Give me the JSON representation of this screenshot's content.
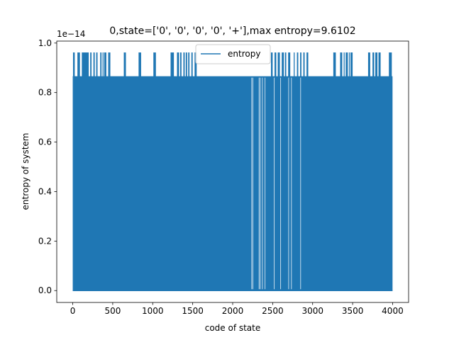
{
  "chart_data": {
    "type": "line",
    "title": "0,state=['0', '0', '0', '0', '+'],max entropy=9.6102",
    "xlabel": "code of state",
    "ylabel": "entropy of system",
    "offset_text": "1e−14",
    "xlim": [
      -200,
      4200
    ],
    "ylim": [
      -0.048,
      1.008
    ],
    "xticks": [
      0,
      500,
      1000,
      1500,
      2000,
      2500,
      3000,
      3500,
      4000
    ],
    "xtick_labels": [
      "0",
      "500",
      "1000",
      "1500",
      "2000",
      "2500",
      "3000",
      "3500",
      "4000"
    ],
    "yticks": [
      0.0,
      0.2,
      0.4,
      0.6,
      0.8,
      1.0
    ],
    "ytick_labels": [
      "0.0",
      "0.2",
      "0.4",
      "0.6",
      "0.8",
      "1.0"
    ],
    "grid": false,
    "legend_position": "top-center",
    "series": [
      {
        "name": "entropy",
        "color": "#1f77b4",
        "x_range": [
          0,
          3999
        ],
        "levels": [
          0.0,
          0.866,
          0.962
        ],
        "high_level_intervals": [
          [
            0,
            25
          ],
          [
            55,
            90
          ],
          [
            110,
            200
          ],
          [
            215,
            235
          ],
          [
            255,
            275
          ],
          [
            290,
            310
          ],
          [
            340,
            360
          ],
          [
            370,
            385
          ],
          [
            390,
            420
          ],
          [
            440,
            470
          ],
          [
            635,
            665
          ],
          [
            820,
            855
          ],
          [
            1005,
            1040
          ],
          [
            1220,
            1265
          ],
          [
            1300,
            1330
          ],
          [
            1340,
            1360
          ],
          [
            1380,
            1400
          ],
          [
            1410,
            1430
          ],
          [
            1440,
            1460
          ],
          [
            1480,
            1500
          ],
          [
            1520,
            1550
          ],
          [
            2475,
            2500
          ],
          [
            2520,
            2545
          ],
          [
            2560,
            2590
          ],
          [
            2610,
            2640
          ],
          [
            2650,
            2670
          ],
          [
            2690,
            2720
          ],
          [
            2760,
            2775
          ],
          [
            2800,
            2820
          ],
          [
            2840,
            2860
          ],
          [
            2880,
            2900
          ],
          [
            2920,
            2945
          ],
          [
            3255,
            3290
          ],
          [
            3340,
            3370
          ],
          [
            3385,
            3400
          ],
          [
            3410,
            3440
          ],
          [
            3450,
            3465
          ],
          [
            3470,
            3500
          ],
          [
            3690,
            3720
          ],
          [
            3745,
            3770
          ],
          [
            3780,
            3810
          ],
          [
            3820,
            3850
          ],
          [
            3950,
            3990
          ]
        ],
        "gaps": [
          2238,
          2252,
          2330,
          2345,
          2372,
          2405,
          2520,
          2600,
          2700,
          2735,
          2850
        ]
      }
    ]
  }
}
